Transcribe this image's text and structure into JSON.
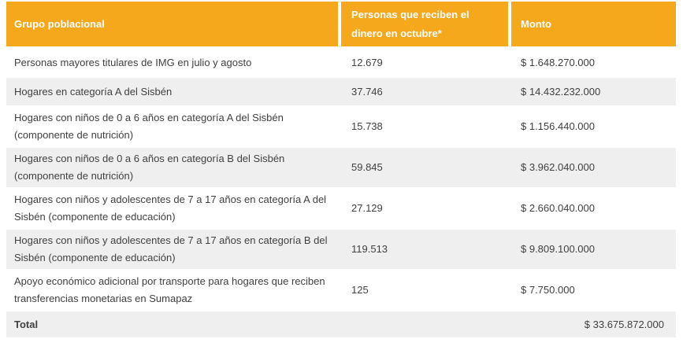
{
  "colors": {
    "accent": "#F5A81C",
    "row_alt": "#EFEFEF",
    "text": "#414042",
    "header_text": "#FFFFFF"
  },
  "chart_data": {
    "type": "table",
    "title": "",
    "columns": [
      "Grupo poblacional",
      "Personas que reciben el dinero en octubre*",
      "Monto"
    ],
    "rows": [
      [
        "Personas mayores titulares de IMG en julio y agosto",
        "12.679",
        "$ 1.648.270.000"
      ],
      [
        "Hogares en categoría A del Sisbén",
        "37.746",
        "$ 14.432.232.000"
      ],
      [
        "Hogares con niños de 0 a 6 años en categoría A del Sisbén (componente de nutrición)",
        "15.738",
        "$ 1.156.440.000"
      ],
      [
        "Hogares con niños de 0 a 6 años en categoría B del Sisbén (componente de nutrición)",
        "59.845",
        "$ 3.962.040.000"
      ],
      [
        "Hogares con niños y adolescentes de 7 a 17 años en categoría A del Sisbén (componente de educación)",
        "27.129",
        "$ 2.660.040.000"
      ],
      [
        "Hogares con niños y adolescentes de 7 a 17 años en categoría B del Sisbén (componente de educación)",
        "119.513",
        "$ 9.809.100.000"
      ],
      [
        "Apoyo económico adicional por transporte para hogares que reciben transferencias monetarias en Sumapaz",
        "125",
        "$ 7.750.000"
      ]
    ],
    "total": {
      "label": "Total",
      "monto": "$ 33.675.872.000"
    }
  }
}
